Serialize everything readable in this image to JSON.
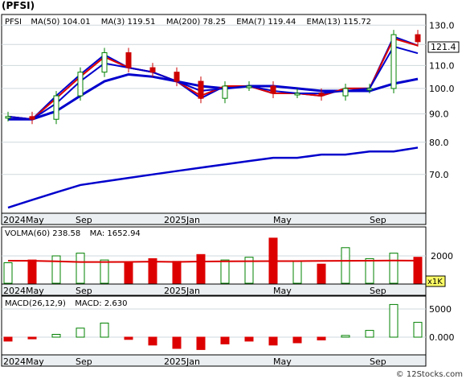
{
  "title": "(PFSI)",
  "watermark": "© 12Stocks.com",
  "colors": {
    "price_up": "#008000",
    "price_down": "#cc0000",
    "ma_line": "#0000cc",
    "ema_line": "#dd0000",
    "bar_up": "#ffffff",
    "bar_down": "#dd0000",
    "grid": "#cfd8dc",
    "frame": "#000000",
    "x_axis_bg": "#eceff1"
  },
  "x_axis_labels": [
    "2024May",
    "Sep",
    "2025Jan",
    "May",
    "Sep"
  ],
  "price_panel": {
    "legend": [
      {
        "label": "PFSI",
        "value": ""
      },
      {
        "label": "MA(50)",
        "value": "104.01"
      },
      {
        "label": "MA(3)",
        "value": "119.51"
      },
      {
        "label": "MA(200)",
        "value": "78.25"
      },
      {
        "label": "EMA(7)",
        "value": "119.44"
      },
      {
        "label": "EMA(13)",
        "value": "115.72"
      }
    ],
    "last_price_label": "121.4"
  },
  "volume_panel": {
    "legend": [
      {
        "label": "VOLMA(60)",
        "value": "238.58"
      },
      {
        "label": "MA:",
        "value": "1652.94"
      }
    ],
    "unit_label": "x1K"
  },
  "macd_panel": {
    "legend": [
      {
        "label": "MACD(26,12,9)",
        "value": ""
      },
      {
        "label": "MACD:",
        "value": "2.630"
      }
    ]
  },
  "chart_data": [
    {
      "type": "line",
      "title": "(PFSI)",
      "ylim": [
        60,
        135
      ],
      "yticks": [
        70.0,
        80.0,
        90.0,
        100.0,
        110.0,
        120.0,
        130.0
      ],
      "scale": "log",
      "grid": true,
      "x": [
        "2024-05-01",
        "2024-06-01",
        "2024-07-01",
        "2024-08-01",
        "2024-09-01",
        "2024-10-01",
        "2024-11-01",
        "2024-12-01",
        "2025-01-01",
        "2025-02-01",
        "2025-03-01",
        "2025-04-01",
        "2025-05-01",
        "2025-06-01",
        "2025-07-01",
        "2025-08-01",
        "2025-09-01",
        "2025-10-01"
      ],
      "series": [
        {
          "name": "PFSI",
          "values": [
            89,
            88,
            97,
            107,
            116,
            109,
            107,
            103,
            96,
            101,
            101,
            98,
            98,
            97,
            100,
            100,
            125,
            121.4
          ]
        },
        {
          "name": "MA(50)",
          "values": [
            88,
            88,
            91,
            97,
            103,
            106,
            105,
            103,
            101,
            100,
            101,
            101,
            100,
            99,
            99,
            99,
            102,
            104.01
          ]
        },
        {
          "name": "MA(3)",
          "values": [
            89,
            88,
            97,
            106,
            115,
            109,
            107,
            103,
            96,
            101,
            101,
            98,
            98,
            97,
            100,
            100,
            124,
            119.51
          ]
        },
        {
          "name": "MA(200)",
          "values": [
            61,
            63,
            65,
            67,
            68,
            69,
            70,
            71,
            72,
            73,
            74,
            75,
            75,
            76,
            76,
            77,
            77,
            78.25
          ]
        },
        {
          "name": "EMA(7)",
          "values": [
            89,
            88,
            96,
            105,
            114,
            109,
            107,
            103,
            97,
            101,
            101,
            98,
            98,
            97,
            100,
            100,
            123,
            119.44
          ]
        },
        {
          "name": "EMA(13)",
          "values": [
            89,
            88,
            94,
            103,
            111,
            109,
            107,
            103,
            99,
            100,
            101,
            99,
            98,
            98,
            99,
            100,
            119,
            115.72
          ]
        }
      ]
    },
    {
      "type": "bar",
      "title": "VOLMA(60)",
      "ylim": [
        0,
        4000
      ],
      "yticks": [
        2000
      ],
      "x": [
        "2024-05-01",
        "2024-06-01",
        "2024-07-01",
        "2024-08-01",
        "2024-09-01",
        "2024-10-01",
        "2024-11-01",
        "2024-12-01",
        "2025-01-01",
        "2025-02-01",
        "2025-03-01",
        "2025-04-01",
        "2025-05-01",
        "2025-06-01",
        "2025-07-01",
        "2025-08-01",
        "2025-09-01",
        "2025-10-01"
      ],
      "series": [
        {
          "name": "Volume",
          "values": [
            1500,
            1700,
            2000,
            2200,
            1700,
            1500,
            1800,
            1600,
            2100,
            1700,
            1900,
            3300,
            1600,
            1400,
            2600,
            1800,
            2200,
            1900
          ]
        },
        {
          "name": "MA",
          "values": [
            1650,
            1640,
            1600,
            1550,
            1550,
            1560,
            1580,
            1560,
            1590,
            1600,
            1610,
            1620,
            1620,
            1630,
            1640,
            1650,
            1660,
            1652.94
          ]
        }
      ]
    },
    {
      "type": "bar",
      "title": "MACD(26,12,9)",
      "ylim": [
        -3000,
        7000
      ],
      "yticks": [
        0.0,
        5000
      ],
      "x": [
        "2024-05-01",
        "2024-06-01",
        "2024-07-01",
        "2024-08-01",
        "2024-09-01",
        "2024-10-01",
        "2024-11-01",
        "2024-12-01",
        "2025-01-01",
        "2025-02-01",
        "2025-03-01",
        "2025-04-01",
        "2025-05-01",
        "2025-06-01",
        "2025-07-01",
        "2025-08-01",
        "2025-09-01",
        "2025-10-01"
      ],
      "series": [
        {
          "name": "MACD",
          "values": [
            -700,
            -300,
            500,
            1600,
            2500,
            -400,
            -1400,
            -2000,
            -2200,
            -1200,
            -700,
            -1400,
            -1000,
            -500,
            300,
            1200,
            5800,
            2630
          ]
        }
      ]
    }
  ]
}
